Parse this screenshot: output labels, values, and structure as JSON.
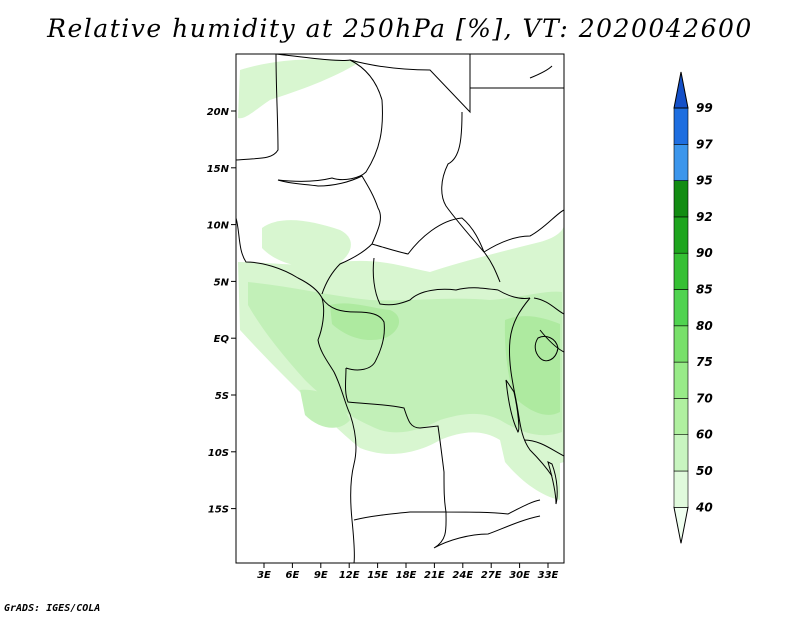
{
  "title": "Relative humidity at 250hPa [%], VT: 2020042600",
  "credit": "GrADS: IGES/COLA",
  "map": {
    "lat_labels": [
      "20N",
      "15N",
      "10N",
      "5N",
      "EQ",
      "5S",
      "10S",
      "15S"
    ],
    "lon_labels": [
      "3E",
      "6E",
      "9E",
      "12E",
      "15E",
      "18E",
      "21E",
      "24E",
      "27E",
      "30E",
      "33E"
    ]
  },
  "colorbar": {
    "labels": [
      "40",
      "50",
      "60",
      "70",
      "75",
      "80",
      "85",
      "90",
      "92",
      "95",
      "97",
      "99"
    ],
    "colors": [
      "#f0fff0",
      "#e0fadc",
      "#c8f5c0",
      "#b0f0a0",
      "#98eb88",
      "#78e06a",
      "#50d350",
      "#36c034",
      "#1ea51e",
      "#128c12",
      "#3c96ec",
      "#1e6ee0",
      "#1450c8"
    ]
  }
}
